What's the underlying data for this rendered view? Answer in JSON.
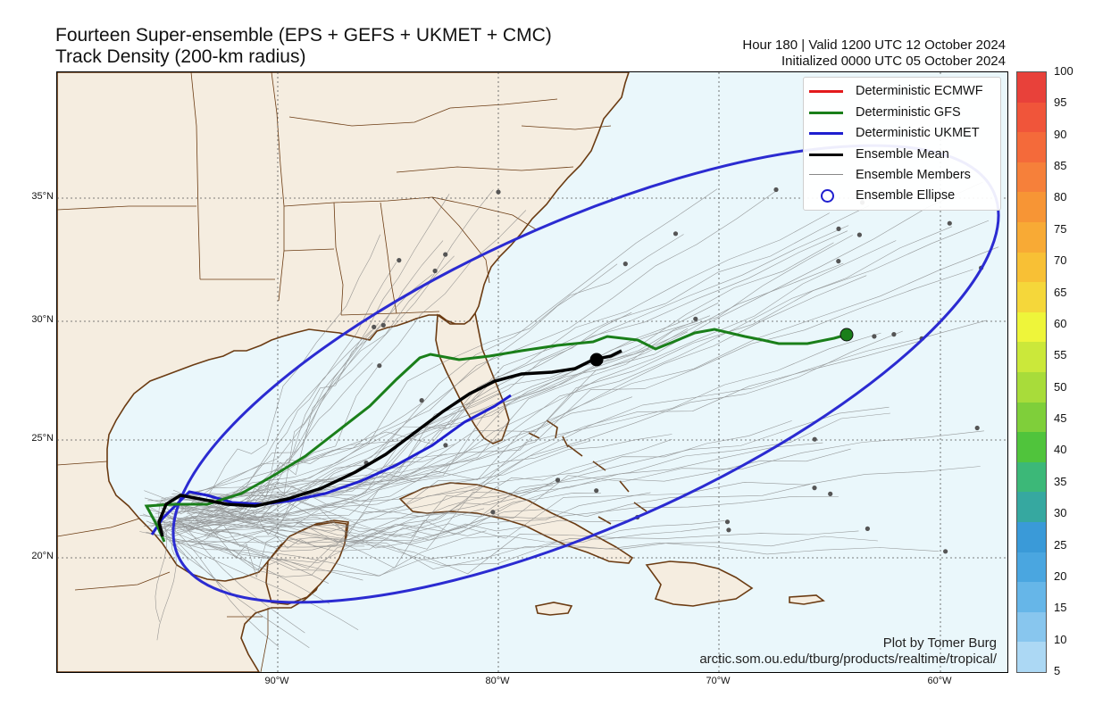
{
  "title": {
    "line1": "Fourteen Super-ensemble (EPS + GEFS + UKMET + CMC)",
    "line2": "Track Density (200-km radius)"
  },
  "subtitle": {
    "line1": "Hour 180 | Valid 1200 UTC 12 October 2024",
    "line2": "Initialized 0000 UTC 05 October 2024"
  },
  "lat_labels": [
    "35°N",
    "30°N",
    "25°N",
    "20°N"
  ],
  "lon_labels": [
    "90°W",
    "80°W",
    "70°W",
    "60°W"
  ],
  "legend": [
    {
      "label": "Deterministic ECMWF",
      "color": "#e31a1c",
      "style": "thick"
    },
    {
      "label": "Deterministic GFS",
      "color": "#1a7f1a",
      "style": "thick"
    },
    {
      "label": "Deterministic UKMET",
      "color": "#1f1fcf",
      "style": "thick"
    },
    {
      "label": "Ensemble Mean",
      "color": "#000000",
      "style": "thick"
    },
    {
      "label": "Ensemble Members",
      "color": "#888888",
      "style": "thin"
    },
    {
      "label": "Ensemble Ellipse",
      "color": "#1f1fcf",
      "style": "circle"
    }
  ],
  "credit": {
    "line1": "Plot by Tomer Burg",
    "line2": "arctic.som.ou.edu/tburg/products/realtime/tropical/"
  },
  "colorbar": {
    "labels": [
      "100",
      "95",
      "90",
      "85",
      "80",
      "75",
      "70",
      "65",
      "60",
      "55",
      "50",
      "45",
      "40",
      "35",
      "30",
      "25",
      "20",
      "15",
      "10",
      "5"
    ],
    "colors": [
      "#e8413a",
      "#f0553a",
      "#f46a3a",
      "#f6803a",
      "#f79535",
      "#f8aa35",
      "#f8c035",
      "#f5d73a",
      "#eef53a",
      "#cbe83a",
      "#a8dc3a",
      "#7fcf3a",
      "#50c43c",
      "#3cb878",
      "#36a8a0",
      "#3a9ad8",
      "#4aa6e0",
      "#66b6e8",
      "#88c6ee",
      "#acd8f4"
    ]
  },
  "colors": {
    "land": "#f5ede0",
    "ocean": "#eaf7fb",
    "ellipse": "#2b2bd1",
    "ecmwf": "#e31a1c",
    "gfs": "#1a7f1a",
    "ukmet": "#1f1fcf",
    "mean": "#000000"
  }
}
